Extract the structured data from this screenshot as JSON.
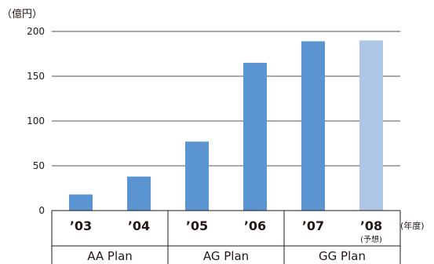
{
  "chart_data": {
    "type": "bar",
    "ylabel": "（億円）",
    "x_unit_label": "(年度)",
    "ylim": [
      0,
      200
    ],
    "yticks": [
      "0",
      "50",
      "100",
      "150",
      "200"
    ],
    "grid": true,
    "categories": [
      "’03",
      "’04",
      "’05",
      "’06",
      "’07",
      "’08"
    ],
    "category_sublabels": [
      "",
      "",
      "",
      "",
      "",
      "(予想)"
    ],
    "values": [
      18,
      38,
      77,
      165,
      189,
      190
    ],
    "is_forecast": [
      false,
      false,
      false,
      false,
      false,
      true
    ],
    "colors": {
      "actual": "#5b95d1",
      "forecast": "#adc6e6",
      "axis": "#231815",
      "grid": "#231815"
    },
    "plans": [
      {
        "label": "AA Plan",
        "from": 0,
        "to": 1
      },
      {
        "label": "AG Plan",
        "from": 2,
        "to": 3
      },
      {
        "label": "GG Plan",
        "from": 4,
        "to": 5
      }
    ]
  }
}
